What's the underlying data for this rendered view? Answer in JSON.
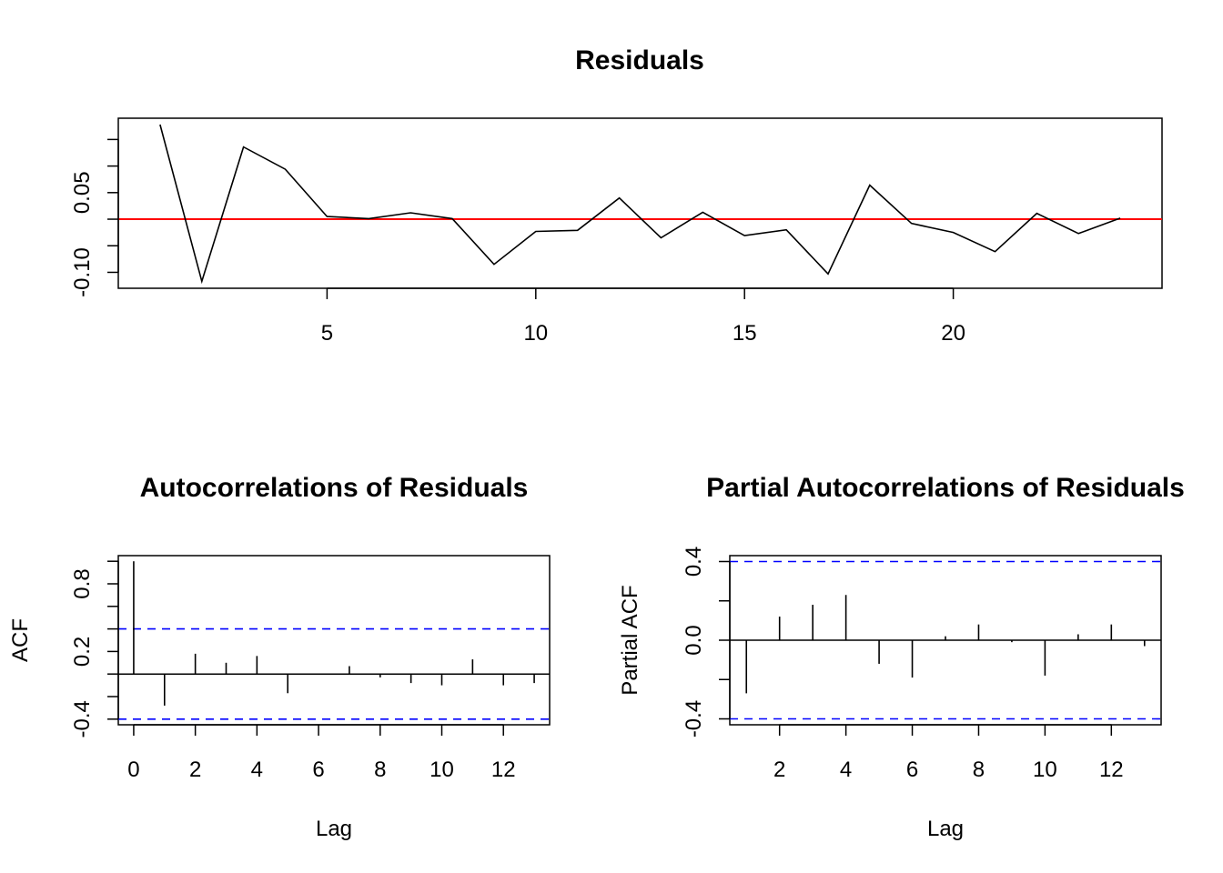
{
  "chart_data": [
    {
      "type": "line",
      "title": "Residuals",
      "xlabel": "",
      "ylabel": "",
      "xlim": [
        0,
        25
      ],
      "ylim": [
        -0.13,
        0.19
      ],
      "x_ticks": [
        5,
        10,
        15,
        20
      ],
      "x_tick_labels": [
        "5",
        "10",
        "15",
        "20"
      ],
      "y_ticks": [
        -0.1,
        -0.05,
        0,
        0.05,
        0.1,
        0.15
      ],
      "y_tick_labels": [
        "-0.10",
        "",
        "",
        "0.05",
        "",
        ""
      ],
      "x": [
        1,
        2,
        3,
        4,
        5,
        6,
        7,
        8,
        9,
        10,
        11,
        12,
        13,
        14,
        15,
        16,
        17,
        18,
        19,
        20,
        21,
        22,
        23,
        24
      ],
      "values": [
        0.178,
        -0.117,
        0.136,
        0.094,
        0.005,
        0.001,
        0.012,
        0.001,
        -0.085,
        -0.023,
        -0.021,
        0.04,
        -0.035,
        0.013,
        -0.031,
        -0.02,
        -0.103,
        0.064,
        -0.008,
        -0.025,
        -0.061,
        0.011,
        -0.027,
        0.002
      ],
      "reference_line": {
        "y": 0,
        "color": "#ff0000"
      },
      "series_color": "#000000",
      "grid": false
    },
    {
      "type": "bar",
      "title": "Autocorrelations of Residuals",
      "xlabel": "Lag",
      "ylabel": "ACF",
      "xlim": [
        -0.5,
        13.5
      ],
      "ylim": [
        -0.45,
        1.05
      ],
      "x_ticks": [
        0,
        2,
        4,
        6,
        8,
        10,
        12
      ],
      "x_tick_labels": [
        "0",
        "2",
        "4",
        "6",
        "8",
        "10",
        "12"
      ],
      "y_ticks": [
        -0.4,
        -0.2,
        0,
        0.2,
        0.4,
        0.6,
        0.8,
        1.0
      ],
      "y_tick_labels": [
        "-0.4",
        "",
        "",
        "0.2",
        "",
        "",
        "0.8",
        ""
      ],
      "lags": [
        0,
        1,
        2,
        3,
        4,
        5,
        6,
        7,
        8,
        9,
        10,
        11,
        12,
        13
      ],
      "values": [
        1.0,
        -0.28,
        0.18,
        0.1,
        0.16,
        -0.17,
        0.0,
        0.07,
        -0.03,
        -0.08,
        -0.1,
        0.13,
        -0.1,
        -0.08
      ],
      "confidence_bounds": [
        0.4,
        -0.4
      ],
      "bound_color": "#0000ff",
      "grid": false
    },
    {
      "type": "bar",
      "title": "Partial Autocorrelations of Residuals",
      "xlabel": "Lag",
      "ylabel": "Partial ACF",
      "xlim": [
        0.5,
        13.5
      ],
      "ylim": [
        -0.43,
        0.43
      ],
      "x_ticks": [
        2,
        4,
        6,
        8,
        10,
        12
      ],
      "x_tick_labels": [
        "2",
        "4",
        "6",
        "8",
        "10",
        "12"
      ],
      "y_ticks": [
        -0.4,
        -0.2,
        0,
        0.2,
        0.4
      ],
      "y_tick_labels": [
        "-0.4",
        "",
        "0.0",
        "",
        "0.4"
      ],
      "lags": [
        1,
        2,
        3,
        4,
        5,
        6,
        7,
        8,
        9,
        10,
        11,
        12,
        13
      ],
      "values": [
        -0.27,
        0.12,
        0.18,
        0.23,
        -0.12,
        -0.19,
        0.02,
        0.08,
        -0.01,
        -0.18,
        0.03,
        0.08,
        -0.03
      ],
      "confidence_bounds": [
        0.4,
        -0.4
      ],
      "bound_color": "#0000ff",
      "grid": false
    }
  ]
}
